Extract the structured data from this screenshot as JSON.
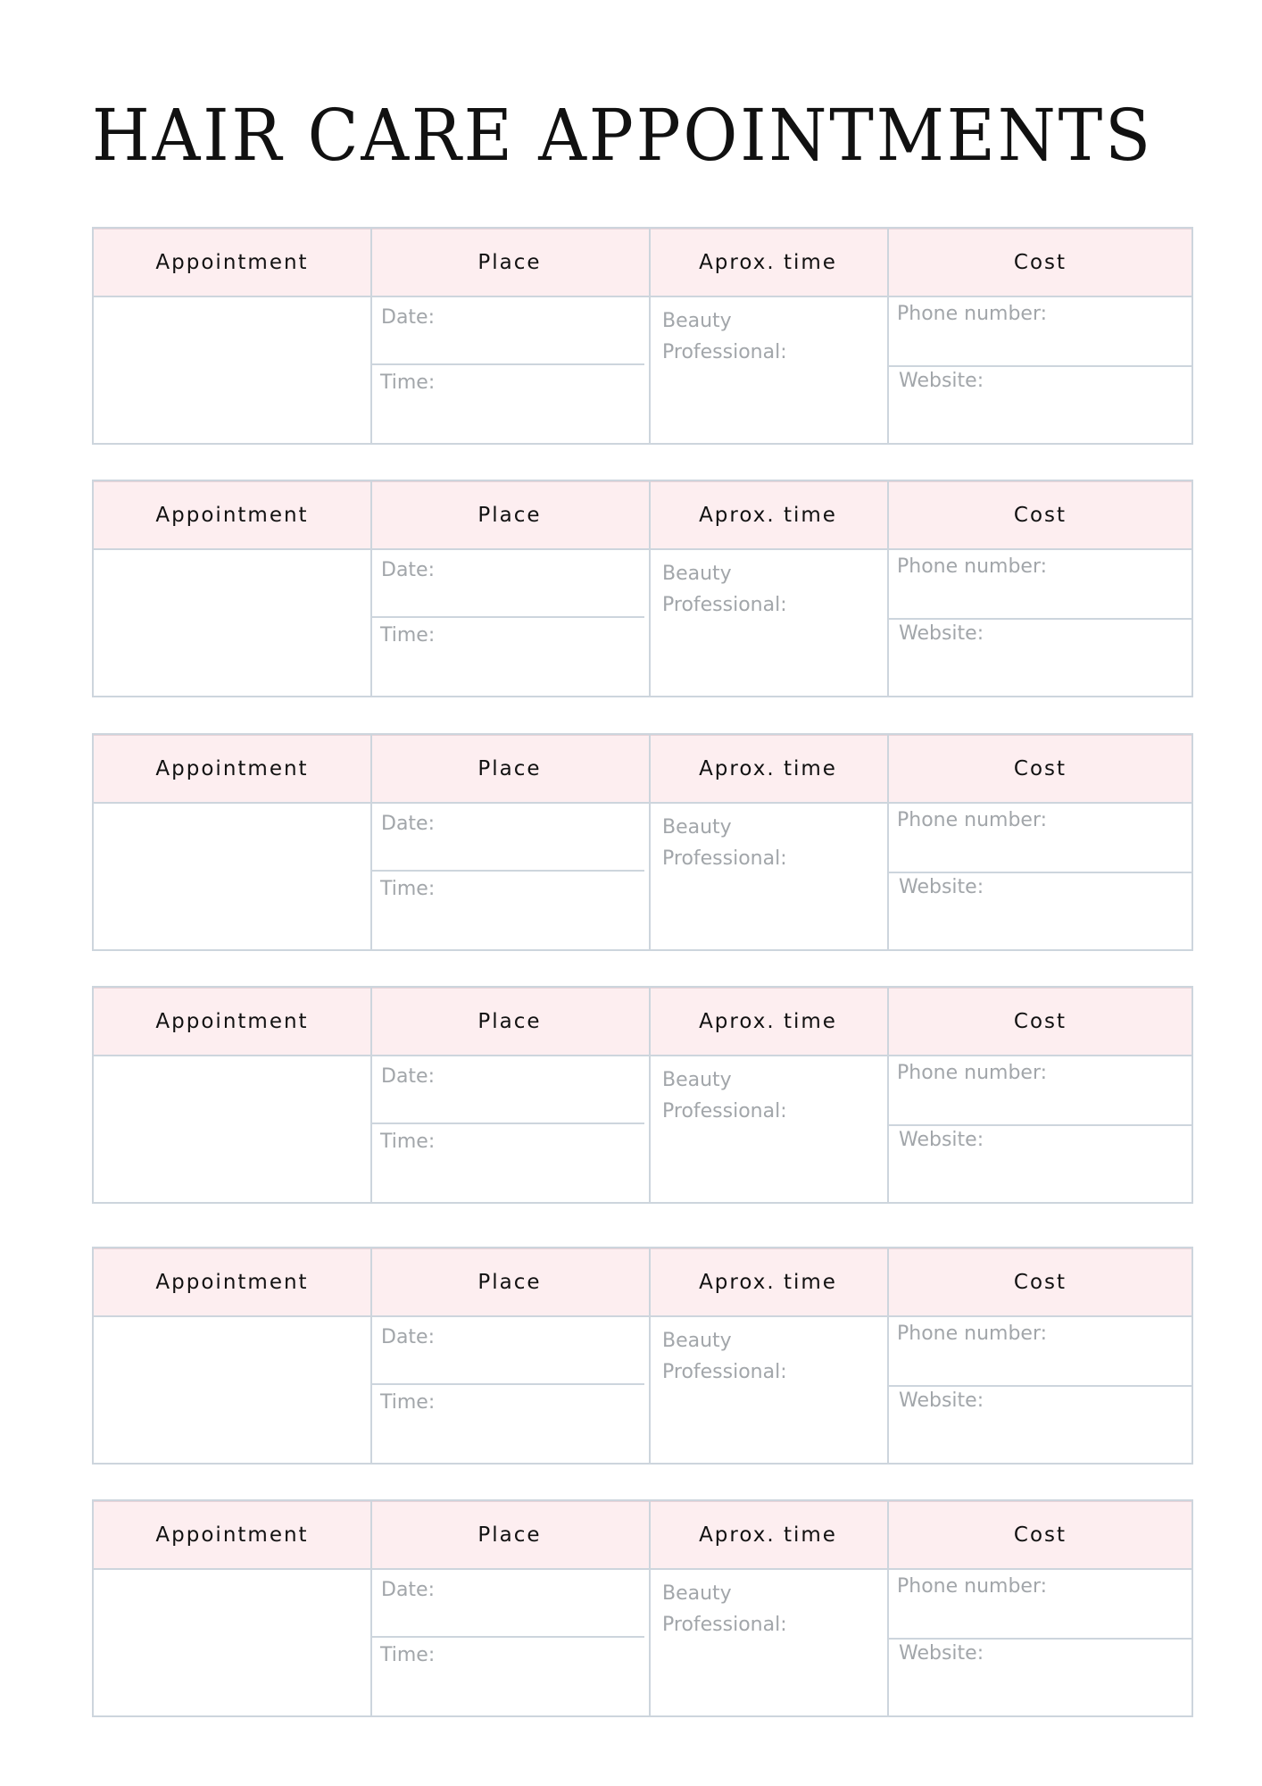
{
  "title": "HAIR CARE APPOINTMENTS",
  "colors": {
    "header_bg": "#fdeef0",
    "border": "#cdd5dd",
    "label": "#a2a6aa"
  },
  "tables": [
    {
      "headers": [
        "Appointment",
        "Place",
        "Aprox. time",
        "Cost"
      ],
      "date_label": "Date:",
      "time_label": "Time:",
      "beauty_label": "Beauty",
      "professional_label": "Professional:",
      "phone_label": "Phone number:",
      "website_label": "Website:"
    },
    {
      "headers": [
        "Appointment",
        "Place",
        "Aprox. time",
        "Cost"
      ],
      "date_label": "Date:",
      "time_label": "Time:",
      "beauty_label": "Beauty",
      "professional_label": "Professional:",
      "phone_label": "Phone number:",
      "website_label": "Website:"
    },
    {
      "headers": [
        "Appointment",
        "Place",
        "Aprox. time",
        "Cost"
      ],
      "date_label": "Date:",
      "time_label": "Time:",
      "beauty_label": "Beauty",
      "professional_label": "Professional:",
      "phone_label": "Phone number:",
      "website_label": "Website:"
    },
    {
      "headers": [
        "Appointment",
        "Place",
        "Aprox. time",
        "Cost"
      ],
      "date_label": "Date:",
      "time_label": "Time:",
      "beauty_label": "Beauty",
      "professional_label": "Professional:",
      "phone_label": "Phone number:",
      "website_label": "Website:"
    },
    {
      "headers": [
        "Appointment",
        "Place",
        "Aprox. time",
        "Cost"
      ],
      "date_label": "Date:",
      "time_label": "Time:",
      "beauty_label": "Beauty",
      "professional_label": "Professional:",
      "phone_label": "Phone number:",
      "website_label": "Website:"
    },
    {
      "headers": [
        "Appointment",
        "Place",
        "Aprox. time",
        "Cost"
      ],
      "date_label": "Date:",
      "time_label": "Time:",
      "beauty_label": "Beauty",
      "professional_label": "Professional:",
      "phone_label": "Phone number:",
      "website_label": "Website:"
    }
  ]
}
